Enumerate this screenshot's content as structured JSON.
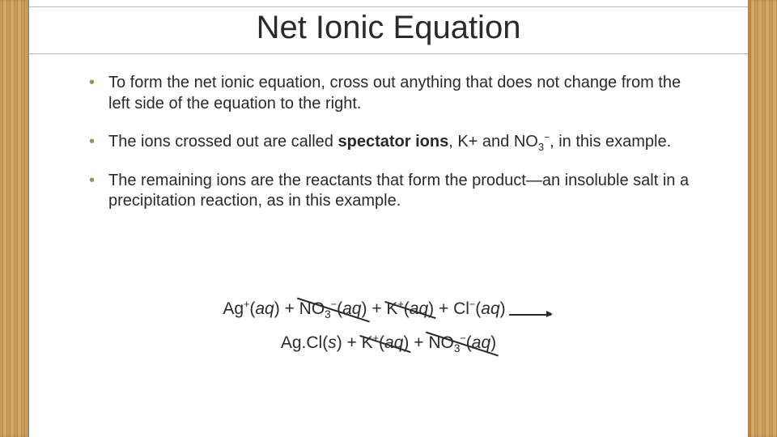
{
  "slide": {
    "title": "Net Ionic Equation",
    "bullet_color": "#8a9a4b",
    "text_color": "#2a2a2a",
    "background": "#ffffff",
    "wood_colors": [
      "#c89b5b",
      "#b98a47",
      "#d3a968",
      "#be8f4f"
    ],
    "title_fontsize": 40,
    "body_fontsize": 20,
    "equation_fontsize": 21,
    "bullets": [
      {
        "text_pre": "To form the net ionic equation, cross out anything that does not change from the left side of the equation to the right."
      },
      {
        "text_pre": "The ions crossed out are called ",
        "bold": "spectator ions",
        "text_mid": ", K+ and NO",
        "sub": "3",
        "sup": "−",
        "text_post": ", in this example."
      },
      {
        "text_pre": "The remaining ions are the reactants that form the product—an  insoluble salt in a precipitation reaction, as in this example."
      }
    ],
    "equation": {
      "reactants": [
        {
          "base": "Ag",
          "sup": "+",
          "state": "aq",
          "crossed": false
        },
        {
          "base": "NO",
          "sub": "3",
          "sup": "−",
          "state": "aq",
          "crossed": true
        },
        {
          "base": "K",
          "sup": "+",
          "state": "aq",
          "crossed": true
        },
        {
          "base": "Cl",
          "sup": "−",
          "state": "aq",
          "crossed": false
        }
      ],
      "products": [
        {
          "base": "Ag.Cl",
          "state": "s",
          "crossed": false
        },
        {
          "base": "K",
          "sup": "+",
          "state": "aq",
          "crossed": true
        },
        {
          "base": "NO",
          "sub": "3",
          "sup": "−",
          "state": "aq",
          "crossed": true
        }
      ],
      "joiner": " + "
    }
  }
}
